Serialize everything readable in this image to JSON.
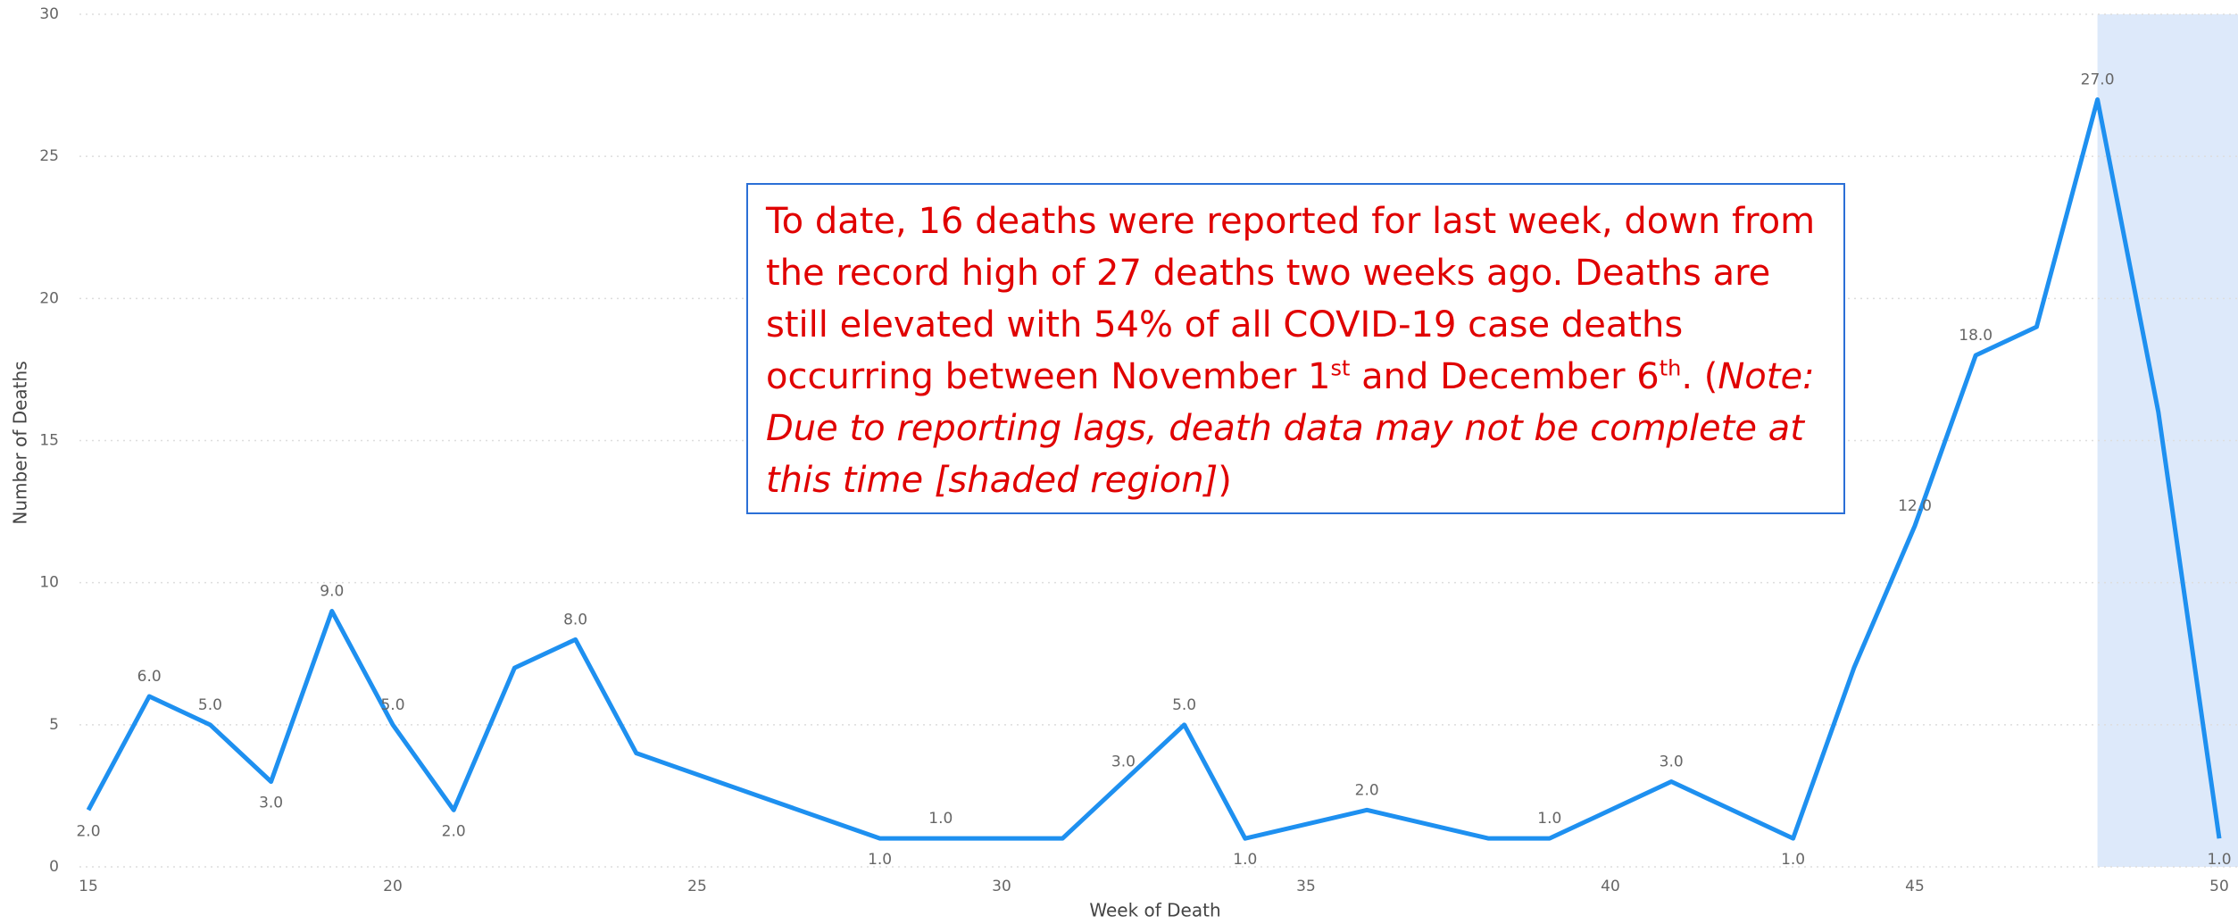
{
  "chart_data": {
    "type": "line",
    "x_label": "Week of Death",
    "y_label": "Number of Deaths",
    "x": [
      15,
      16,
      17,
      18,
      19,
      20,
      21,
      22,
      23,
      24,
      28,
      29,
      31,
      32,
      33,
      34,
      36,
      38,
      39,
      41,
      43,
      44,
      45,
      46,
      47,
      48,
      49,
      50
    ],
    "series": [
      {
        "name": "Deaths",
        "color": "#1e90f0",
        "values": [
          2,
          6,
          5,
          3,
          9,
          5,
          2,
          7,
          8,
          4,
          1,
          1,
          1,
          3,
          5,
          1,
          2,
          1,
          1,
          3,
          1,
          7,
          12,
          18,
          19,
          27,
          16,
          1
        ],
        "value_labels": [
          "2.0",
          "6.0",
          "5.0",
          "3.0",
          "9.0",
          "5.0",
          "2.0",
          null,
          "8.0",
          null,
          "1.0",
          "1.0",
          null,
          "3.0",
          "5.0",
          "1.0",
          "2.0",
          null,
          "1.0",
          "3.0",
          "1.0",
          null,
          "12.0",
          "18.0",
          null,
          "27.0",
          null,
          "1.0"
        ]
      }
    ],
    "xlim": [
      15,
      50
    ],
    "xticks": [
      15,
      20,
      25,
      30,
      35,
      40,
      45,
      50
    ],
    "ylim": [
      0,
      30
    ],
    "yticks": [
      0,
      5,
      10,
      15,
      20,
      25,
      30
    ],
    "grid": true,
    "shaded_region": [
      48,
      50
    ],
    "annotation": [
      {
        "text": "To date, 16 deaths were reported for last week, down from the record high of 27 deaths two weeks ago. Deaths are still elevated with 54% of all COVID-19 case deaths occurring between November 1",
        "style": "normal"
      },
      {
        "text": "st",
        "style": "sup"
      },
      {
        "text": " and December 6",
        "style": "normal"
      },
      {
        "text": "th",
        "style": "sup"
      },
      {
        "text": ". (",
        "style": "normal"
      },
      {
        "text": "Note: Due to reporting lags, death data may not be complete at this time [shaded region]",
        "style": "italic"
      },
      {
        "text": ")",
        "style": "normal"
      }
    ]
  }
}
